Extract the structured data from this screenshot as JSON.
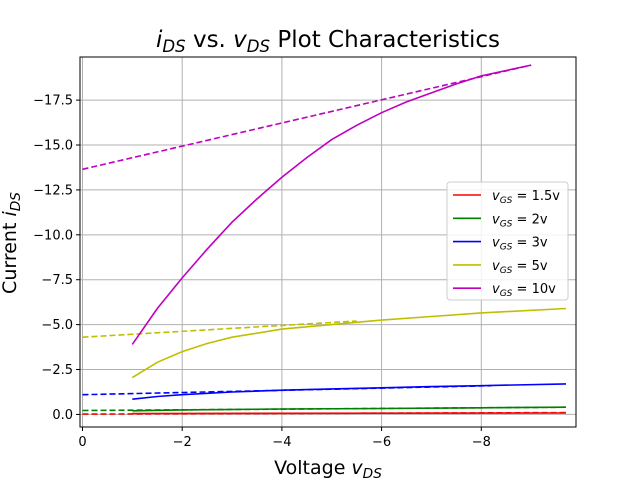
{
  "chart_data": {
    "type": "line",
    "title": {
      "main": "i",
      "main_sub": "DS",
      "mid": " vs. ",
      "var": "v",
      "var_sub": "DS",
      "rest": " Plot Characteristics"
    },
    "xlabel": {
      "text": "Voltage ",
      "var": "v",
      "sub": "DS"
    },
    "ylabel": {
      "text": "Current ",
      "var": "i",
      "sub": "DS"
    },
    "xlim": [
      0.05,
      -9.9
    ],
    "ylim": [
      0.7,
      -19.9
    ],
    "x_ticks": [
      {
        "value": 0,
        "label": "0"
      },
      {
        "value": -2,
        "label": "−2"
      },
      {
        "value": -4,
        "label": "−4"
      },
      {
        "value": -6,
        "label": "−6"
      },
      {
        "value": -8,
        "label": "−8"
      }
    ],
    "y_ticks": [
      {
        "value": 0,
        "label": "0.0"
      },
      {
        "value": -2.5,
        "label": "−2.5"
      },
      {
        "value": -5,
        "label": "−5.0"
      },
      {
        "value": -7.5,
        "label": "−7.5"
      },
      {
        "value": -10,
        "label": "−10.0"
      },
      {
        "value": -12.5,
        "label": "−12.5"
      },
      {
        "value": -15,
        "label": "−15.0"
      },
      {
        "value": -17.5,
        "label": "−17.5"
      }
    ],
    "grid": true,
    "legend_position": "center-right",
    "series": [
      {
        "name": "1.5v",
        "legend_var": "v",
        "legend_sub": "GS",
        "color": "#ff0000",
        "solid": {
          "x": [
            -1,
            -9.7
          ],
          "y": [
            -0.05,
            -0.08
          ]
        },
        "dashed": {
          "x": [
            0,
            -9.7
          ],
          "y": [
            -0.02,
            -0.1
          ]
        }
      },
      {
        "name": "2v",
        "legend_var": "v",
        "legend_sub": "GS",
        "color": "#008000",
        "solid": {
          "x": [
            -1,
            -2,
            -4,
            -6,
            -8,
            -9.7
          ],
          "y": [
            -0.2,
            -0.25,
            -0.3,
            -0.33,
            -0.37,
            -0.4
          ]
        },
        "dashed": {
          "x": [
            0,
            -9.7
          ],
          "y": [
            -0.22,
            -0.4
          ]
        }
      },
      {
        "name": "3v",
        "legend_var": "v",
        "legend_sub": "GS",
        "color": "#0000ff",
        "solid": {
          "x": [
            -1,
            -1.5,
            -2,
            -3,
            -4,
            -5,
            -6,
            -7,
            -8,
            -9.7
          ],
          "y": [
            -0.85,
            -1.0,
            -1.1,
            -1.25,
            -1.35,
            -1.42,
            -1.48,
            -1.55,
            -1.6,
            -1.7
          ]
        },
        "dashed": {
          "x": [
            0,
            -8.2
          ],
          "y": [
            -1.1,
            -1.6
          ]
        }
      },
      {
        "name": "5v",
        "legend_var": "v",
        "legend_sub": "GS",
        "color": "#bfbf00",
        "solid": {
          "x": [
            -1,
            -1.5,
            -2,
            -2.5,
            -3,
            -4,
            -5,
            -6,
            -7,
            -8,
            -9.7
          ],
          "y": [
            -2.05,
            -2.9,
            -3.5,
            -3.95,
            -4.3,
            -4.75,
            -5.0,
            -5.25,
            -5.45,
            -5.65,
            -5.9
          ]
        },
        "dashed": {
          "x": [
            0,
            -5.5
          ],
          "y": [
            -4.3,
            -5.2
          ]
        }
      },
      {
        "name": "10v",
        "legend_var": "v",
        "legend_sub": "GS",
        "color": "#bf00bf",
        "solid": {
          "x": [
            -1,
            -1.5,
            -2,
            -2.5,
            -3,
            -3.5,
            -4,
            -4.5,
            -5,
            -5.5,
            -6,
            -6.5,
            -7,
            -7.5,
            -8,
            -8.5,
            -9
          ],
          "y": [
            -3.9,
            -5.9,
            -7.6,
            -9.2,
            -10.7,
            -12.0,
            -13.2,
            -14.3,
            -15.3,
            -16.1,
            -16.8,
            -17.4,
            -17.9,
            -18.4,
            -18.85,
            -19.15,
            -19.45
          ]
        },
        "dashed": {
          "x": [
            0,
            -9
          ],
          "y": [
            -13.65,
            -19.45
          ]
        }
      }
    ]
  }
}
